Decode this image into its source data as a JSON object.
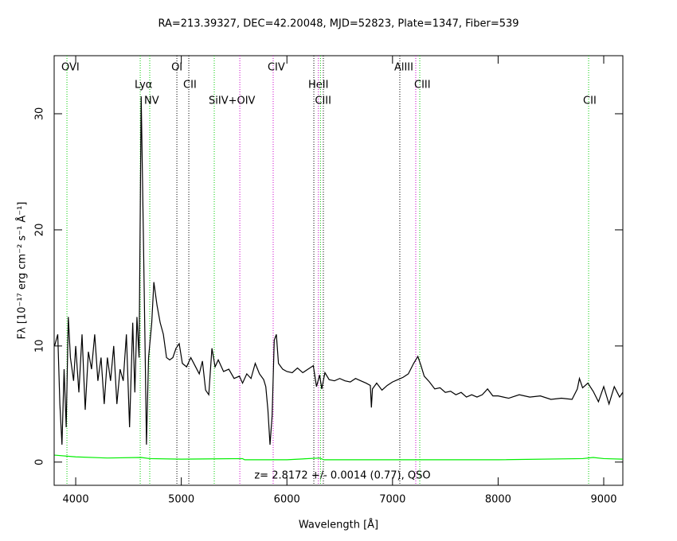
{
  "chart_data": {
    "type": "line",
    "title": "RA=213.39327, DEC=42.20048, MJD=52823, Plate=1347, Fiber=539",
    "x_label": "Wavelength [Å]",
    "y_label": "Fλ [10⁻¹⁷ erg cm⁻² s⁻¹ Å⁻¹]",
    "annotation": "z= 2.8172 +/- 0.0014 (0.77), QSO",
    "xlim": [
      3796,
      9181
    ],
    "ylim": [
      -2,
      35
    ],
    "xticks": [
      4000,
      5000,
      6000,
      7000,
      8000,
      9000
    ],
    "yticks": [
      0,
      10,
      20,
      30
    ],
    "series": [
      {
        "color": "#000000",
        "x": [
          3800,
          3830,
          3850,
          3870,
          3890,
          3910,
          3930,
          3950,
          3980,
          4000,
          4030,
          4060,
          4090,
          4120,
          4150,
          4180,
          4210,
          4240,
          4270,
          4300,
          4330,
          4360,
          4390,
          4420,
          4450,
          4480,
          4510,
          4540,
          4560,
          4580,
          4600,
          4620,
          4640,
          4660,
          4670,
          4690,
          4720,
          4740,
          4770,
          4800,
          4830,
          4860,
          4890,
          4920,
          4950,
          4980,
          5010,
          5050,
          5090,
          5130,
          5170,
          5200,
          5230,
          5260,
          5290,
          5320,
          5350,
          5400,
          5450,
          5500,
          5550,
          5580,
          5620,
          5660,
          5700,
          5740,
          5780,
          5800,
          5820,
          5840,
          5860,
          5880,
          5900,
          5920,
          5960,
          6000,
          6050,
          6100,
          6150,
          6200,
          6250,
          6280,
          6310,
          6330,
          6360,
          6400,
          6450,
          6500,
          6550,
          6600,
          6650,
          6700,
          6750,
          6790,
          6800,
          6810,
          6850,
          6900,
          6950,
          7000,
          7050,
          7100,
          7150,
          7200,
          7240,
          7270,
          7300,
          7350,
          7400,
          7450,
          7500,
          7550,
          7600,
          7650,
          7700,
          7750,
          7800,
          7850,
          7900,
          7950,
          8000,
          8100,
          8200,
          8300,
          8400,
          8500,
          8600,
          8700,
          8750,
          8770,
          8800,
          8850,
          8900,
          8950,
          9000,
          9050,
          9100,
          9150,
          9180
        ],
        "values": [
          10,
          11,
          5,
          1.5,
          8,
          3,
          12.5,
          9,
          7,
          10,
          6,
          11,
          4.5,
          9.5,
          8,
          11,
          7,
          9,
          5,
          9,
          7,
          10,
          5,
          8,
          7,
          11,
          3,
          12,
          6,
          12.5,
          9,
          31.5,
          20,
          8,
          1.5,
          9,
          12,
          15.5,
          13.5,
          12,
          11,
          9,
          8.8,
          9,
          9.8,
          10.2,
          8.5,
          8.2,
          9,
          8.3,
          7.6,
          8.7,
          6.2,
          5.8,
          9.8,
          8.2,
          8.8,
          7.8,
          8,
          7.2,
          7.4,
          6.8,
          7.6,
          7.2,
          8.5,
          7.6,
          7.1,
          6.5,
          4.5,
          1.5,
          4,
          10.5,
          11,
          8.5,
          8,
          7.8,
          7.7,
          8.1,
          7.7,
          8,
          8.3,
          6.5,
          7.5,
          6.3,
          7.7,
          7.1,
          7,
          7.2,
          7,
          6.9,
          7.2,
          7,
          6.8,
          6.6,
          4.7,
          6.3,
          6.8,
          6.2,
          6.6,
          6.9,
          7.1,
          7.3,
          7.6,
          8.5,
          9.1,
          8.3,
          7.4,
          6.9,
          6.3,
          6.4,
          6,
          6.1,
          5.8,
          6,
          5.6,
          5.8,
          5.6,
          5.8,
          6.3,
          5.7,
          5.7,
          5.5,
          5.8,
          5.6,
          5.7,
          5.4,
          5.5,
          5.4,
          6.3,
          7.2,
          6.4,
          6.8,
          6.1,
          5.2,
          6.5,
          5,
          6.5,
          5.6,
          6
        ]
      },
      {
        "color": "#00ee00",
        "x": [
          3800,
          4000,
          4300,
          4620,
          4700,
          5000,
          5580,
          5600,
          6000,
          6310,
          6350,
          7000,
          8000,
          8800,
          8900,
          9000,
          9180
        ],
        "values": [
          0.6,
          0.45,
          0.35,
          0.4,
          0.3,
          0.25,
          0.3,
          0.2,
          0.2,
          0.35,
          0.2,
          0.2,
          0.2,
          0.3,
          0.4,
          0.3,
          0.25
        ]
      }
    ],
    "line_markers": [
      {
        "label": "OVI",
        "x": 3917,
        "color": "#00cc00"
      },
      {
        "label": "Lyα",
        "x": 4611,
        "color": "#00cc00"
      },
      {
        "label": "NV",
        "x": 4701,
        "color": "#00cc00"
      },
      {
        "label": "OI",
        "x": 4958,
        "color": "#000000"
      },
      {
        "label": "CII",
        "x": 5071,
        "color": "#000000"
      },
      {
        "label": "SiIV+OIV",
        "x": 5312,
        "color": "#00cc00"
      },
      {
        "label": null,
        "x": 5554,
        "color": "#cc00cc"
      },
      {
        "label": "CIV",
        "x": 5870,
        "color": "#cc00cc"
      },
      {
        "label": "HeII",
        "x": 6255,
        "color": "#000000"
      },
      {
        "label": null,
        "x": 6298,
        "color": "#cc00cc"
      },
      {
        "label": "CIII",
        "x": 6318,
        "color": "#00cc00"
      },
      {
        "label": null,
        "x": 6345,
        "color": "#000000"
      },
      {
        "label": "AlIII",
        "x": 7069,
        "color": "#000000"
      },
      {
        "label": null,
        "x": 7220,
        "color": "#cc00cc"
      },
      {
        "label": "CIII",
        "x": 7258,
        "color": "#00cc00"
      },
      {
        "label": "CII",
        "x": 8857,
        "color": "#00cc00"
      }
    ]
  }
}
